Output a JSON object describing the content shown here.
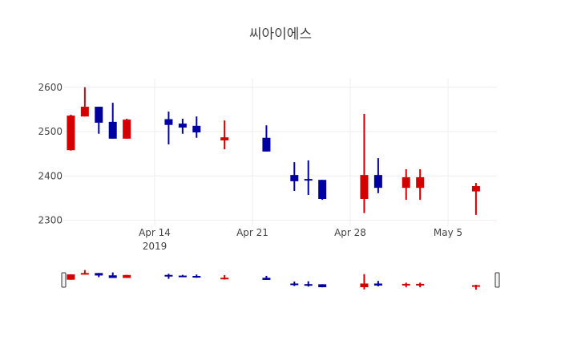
{
  "chart_data": {
    "type": "candlestick",
    "title": "씨아이에스",
    "xlabel": "",
    "ylabel": "",
    "ylim": [
      2297,
      2631
    ],
    "yticks": [
      2300,
      2400,
      2500,
      2600
    ],
    "xticks": [
      {
        "date": "2019-04-14",
        "label": "Apr 14",
        "sublabel": "2019"
      },
      {
        "date": "2019-04-21",
        "label": "Apr 21",
        "sublabel": ""
      },
      {
        "date": "2019-04-28",
        "label": "Apr 28",
        "sublabel": ""
      },
      {
        "date": "2019-05-05",
        "label": "May 5",
        "sublabel": ""
      }
    ],
    "grid": true,
    "rangeslider": true,
    "increasing_color": "#d40000",
    "decreasing_color": "#0000a0",
    "candles": [
      {
        "date": "2019-04-08",
        "open": 2458,
        "high": 2538,
        "low": 2457,
        "close": 2536
      },
      {
        "date": "2019-04-09",
        "open": 2534,
        "high": 2600,
        "low": 2534,
        "close": 2556
      },
      {
        "date": "2019-04-10",
        "open": 2556,
        "high": 2556,
        "low": 2495,
        "close": 2520
      },
      {
        "date": "2019-04-11",
        "open": 2522,
        "high": 2565,
        "low": 2484,
        "close": 2484
      },
      {
        "date": "2019-04-12",
        "open": 2484,
        "high": 2529,
        "low": 2484,
        "close": 2527
      },
      {
        "date": "2019-04-15",
        "open": 2528,
        "high": 2545,
        "low": 2471,
        "close": 2515
      },
      {
        "date": "2019-04-16",
        "open": 2518,
        "high": 2529,
        "low": 2495,
        "close": 2509
      },
      {
        "date": "2019-04-17",
        "open": 2513,
        "high": 2534,
        "low": 2486,
        "close": 2498
      },
      {
        "date": "2019-04-19",
        "open": 2480,
        "high": 2525,
        "low": 2460,
        "close": 2487
      },
      {
        "date": "2019-04-22",
        "open": 2486,
        "high": 2514,
        "low": 2455,
        "close": 2455
      },
      {
        "date": "2019-04-24",
        "open": 2402,
        "high": 2431,
        "low": 2366,
        "close": 2388
      },
      {
        "date": "2019-04-25",
        "open": 2393,
        "high": 2435,
        "low": 2357,
        "close": 2390
      },
      {
        "date": "2019-04-26",
        "open": 2391,
        "high": 2391,
        "low": 2346,
        "close": 2348
      },
      {
        "date": "2019-04-29",
        "open": 2348,
        "high": 2540,
        "low": 2316,
        "close": 2402
      },
      {
        "date": "2019-04-30",
        "open": 2402,
        "high": 2440,
        "low": 2361,
        "close": 2373
      },
      {
        "date": "2019-05-02",
        "open": 2373,
        "high": 2415,
        "low": 2346,
        "close": 2397
      },
      {
        "date": "2019-05-03",
        "open": 2373,
        "high": 2415,
        "low": 2346,
        "close": 2397
      },
      {
        "date": "2019-05-07",
        "open": 2365,
        "high": 2384,
        "low": 2312,
        "close": 2377
      }
    ]
  }
}
